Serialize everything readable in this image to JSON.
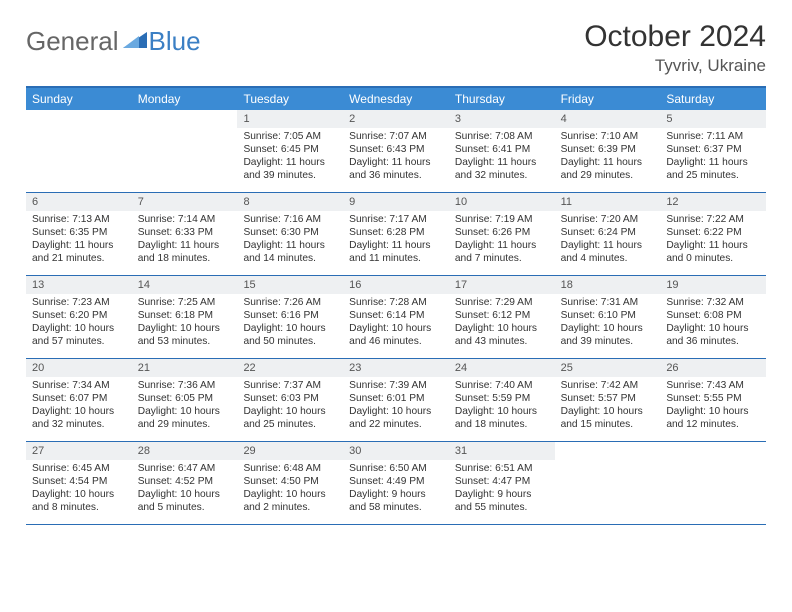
{
  "brand": {
    "part1": "General",
    "part2": "Blue"
  },
  "title": "October 2024",
  "location": "Tyvriv, Ukraine",
  "colors": {
    "header_bar": "#3b8bd4",
    "rule": "#2a6db5",
    "daynum_bg": "#eef0f2",
    "logo_blue": "#3b7fc4",
    "text": "#333333"
  },
  "day_headers": [
    "Sunday",
    "Monday",
    "Tuesday",
    "Wednesday",
    "Thursday",
    "Friday",
    "Saturday"
  ],
  "weeks": [
    [
      {
        "n": "",
        "rise": "",
        "set": "",
        "day": "",
        "empty": true
      },
      {
        "n": "",
        "rise": "",
        "set": "",
        "day": "",
        "empty": true
      },
      {
        "n": "1",
        "rise": "Sunrise: 7:05 AM",
        "set": "Sunset: 6:45 PM",
        "day": "Daylight: 11 hours and 39 minutes."
      },
      {
        "n": "2",
        "rise": "Sunrise: 7:07 AM",
        "set": "Sunset: 6:43 PM",
        "day": "Daylight: 11 hours and 36 minutes."
      },
      {
        "n": "3",
        "rise": "Sunrise: 7:08 AM",
        "set": "Sunset: 6:41 PM",
        "day": "Daylight: 11 hours and 32 minutes."
      },
      {
        "n": "4",
        "rise": "Sunrise: 7:10 AM",
        "set": "Sunset: 6:39 PM",
        "day": "Daylight: 11 hours and 29 minutes."
      },
      {
        "n": "5",
        "rise": "Sunrise: 7:11 AM",
        "set": "Sunset: 6:37 PM",
        "day": "Daylight: 11 hours and 25 minutes."
      }
    ],
    [
      {
        "n": "6",
        "rise": "Sunrise: 7:13 AM",
        "set": "Sunset: 6:35 PM",
        "day": "Daylight: 11 hours and 21 minutes."
      },
      {
        "n": "7",
        "rise": "Sunrise: 7:14 AM",
        "set": "Sunset: 6:33 PM",
        "day": "Daylight: 11 hours and 18 minutes."
      },
      {
        "n": "8",
        "rise": "Sunrise: 7:16 AM",
        "set": "Sunset: 6:30 PM",
        "day": "Daylight: 11 hours and 14 minutes."
      },
      {
        "n": "9",
        "rise": "Sunrise: 7:17 AM",
        "set": "Sunset: 6:28 PM",
        "day": "Daylight: 11 hours and 11 minutes."
      },
      {
        "n": "10",
        "rise": "Sunrise: 7:19 AM",
        "set": "Sunset: 6:26 PM",
        "day": "Daylight: 11 hours and 7 minutes."
      },
      {
        "n": "11",
        "rise": "Sunrise: 7:20 AM",
        "set": "Sunset: 6:24 PM",
        "day": "Daylight: 11 hours and 4 minutes."
      },
      {
        "n": "12",
        "rise": "Sunrise: 7:22 AM",
        "set": "Sunset: 6:22 PM",
        "day": "Daylight: 11 hours and 0 minutes."
      }
    ],
    [
      {
        "n": "13",
        "rise": "Sunrise: 7:23 AM",
        "set": "Sunset: 6:20 PM",
        "day": "Daylight: 10 hours and 57 minutes."
      },
      {
        "n": "14",
        "rise": "Sunrise: 7:25 AM",
        "set": "Sunset: 6:18 PM",
        "day": "Daylight: 10 hours and 53 minutes."
      },
      {
        "n": "15",
        "rise": "Sunrise: 7:26 AM",
        "set": "Sunset: 6:16 PM",
        "day": "Daylight: 10 hours and 50 minutes."
      },
      {
        "n": "16",
        "rise": "Sunrise: 7:28 AM",
        "set": "Sunset: 6:14 PM",
        "day": "Daylight: 10 hours and 46 minutes."
      },
      {
        "n": "17",
        "rise": "Sunrise: 7:29 AM",
        "set": "Sunset: 6:12 PM",
        "day": "Daylight: 10 hours and 43 minutes."
      },
      {
        "n": "18",
        "rise": "Sunrise: 7:31 AM",
        "set": "Sunset: 6:10 PM",
        "day": "Daylight: 10 hours and 39 minutes."
      },
      {
        "n": "19",
        "rise": "Sunrise: 7:32 AM",
        "set": "Sunset: 6:08 PM",
        "day": "Daylight: 10 hours and 36 minutes."
      }
    ],
    [
      {
        "n": "20",
        "rise": "Sunrise: 7:34 AM",
        "set": "Sunset: 6:07 PM",
        "day": "Daylight: 10 hours and 32 minutes."
      },
      {
        "n": "21",
        "rise": "Sunrise: 7:36 AM",
        "set": "Sunset: 6:05 PM",
        "day": "Daylight: 10 hours and 29 minutes."
      },
      {
        "n": "22",
        "rise": "Sunrise: 7:37 AM",
        "set": "Sunset: 6:03 PM",
        "day": "Daylight: 10 hours and 25 minutes."
      },
      {
        "n": "23",
        "rise": "Sunrise: 7:39 AM",
        "set": "Sunset: 6:01 PM",
        "day": "Daylight: 10 hours and 22 minutes."
      },
      {
        "n": "24",
        "rise": "Sunrise: 7:40 AM",
        "set": "Sunset: 5:59 PM",
        "day": "Daylight: 10 hours and 18 minutes."
      },
      {
        "n": "25",
        "rise": "Sunrise: 7:42 AM",
        "set": "Sunset: 5:57 PM",
        "day": "Daylight: 10 hours and 15 minutes."
      },
      {
        "n": "26",
        "rise": "Sunrise: 7:43 AM",
        "set": "Sunset: 5:55 PM",
        "day": "Daylight: 10 hours and 12 minutes."
      }
    ],
    [
      {
        "n": "27",
        "rise": "Sunrise: 6:45 AM",
        "set": "Sunset: 4:54 PM",
        "day": "Daylight: 10 hours and 8 minutes."
      },
      {
        "n": "28",
        "rise": "Sunrise: 6:47 AM",
        "set": "Sunset: 4:52 PM",
        "day": "Daylight: 10 hours and 5 minutes."
      },
      {
        "n": "29",
        "rise": "Sunrise: 6:48 AM",
        "set": "Sunset: 4:50 PM",
        "day": "Daylight: 10 hours and 2 minutes."
      },
      {
        "n": "30",
        "rise": "Sunrise: 6:50 AM",
        "set": "Sunset: 4:49 PM",
        "day": "Daylight: 9 hours and 58 minutes."
      },
      {
        "n": "31",
        "rise": "Sunrise: 6:51 AM",
        "set": "Sunset: 4:47 PM",
        "day": "Daylight: 9 hours and 55 minutes."
      },
      {
        "n": "",
        "rise": "",
        "set": "",
        "day": "",
        "empty": true
      },
      {
        "n": "",
        "rise": "",
        "set": "",
        "day": "",
        "empty": true
      }
    ]
  ]
}
